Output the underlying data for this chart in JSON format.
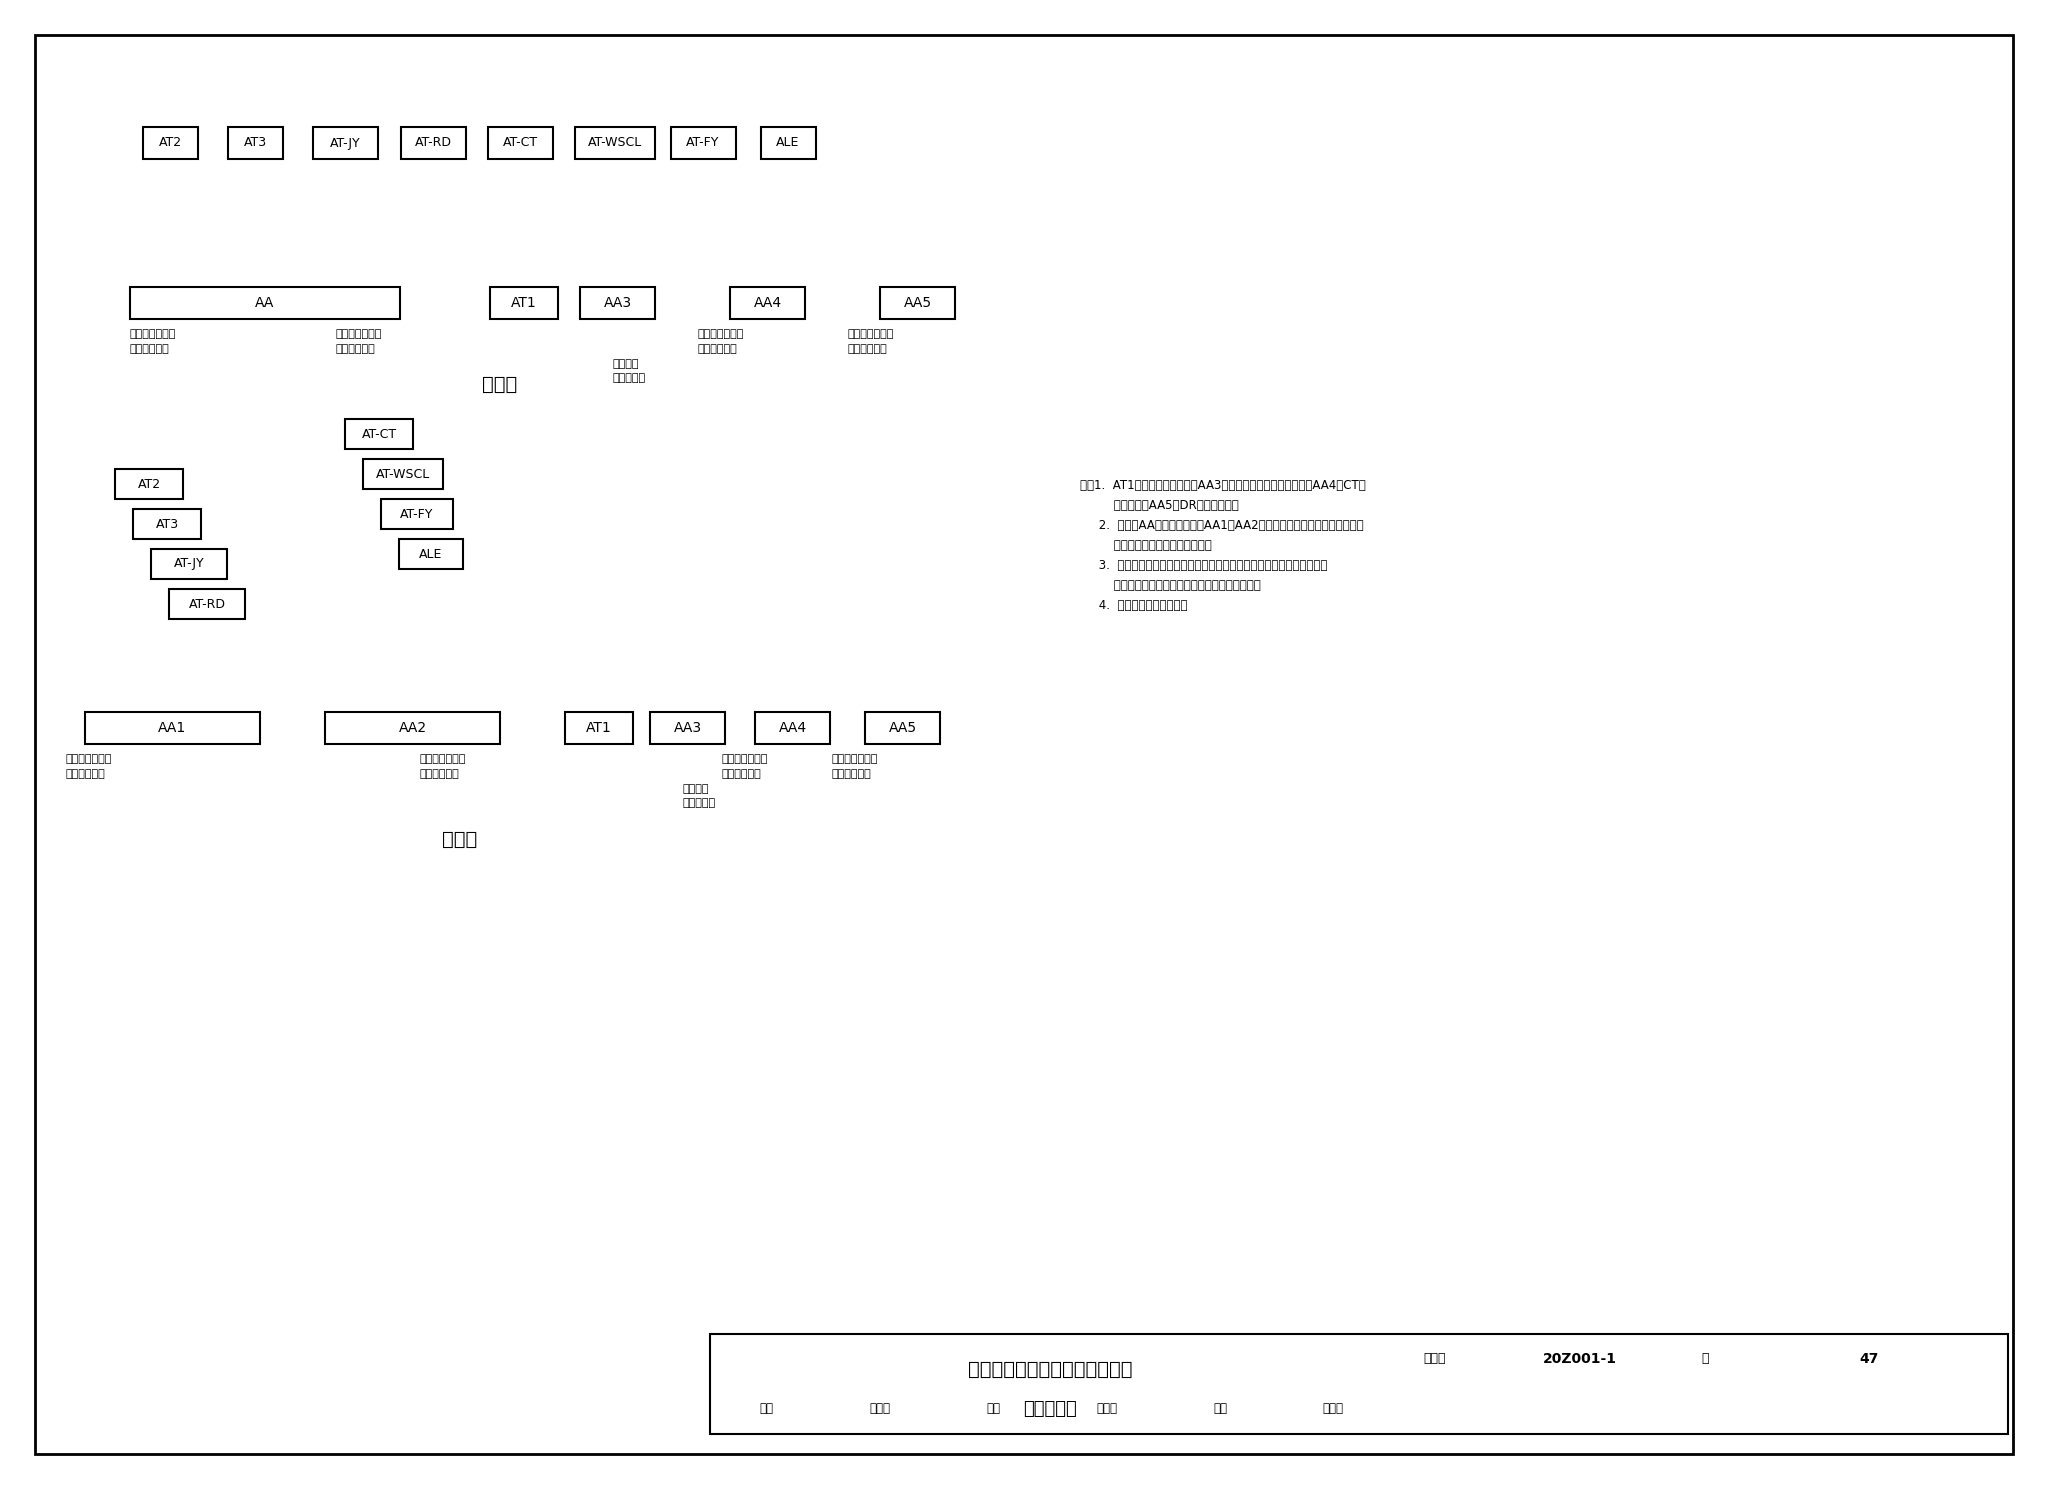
{
  "background_color": "#ffffff",
  "scheme1_label": "方案一",
  "scheme2_label": "方案二",
  "drawing_title_line1": "箱式留观病区医患走道合设示例",
  "drawing_title_line2": "干线系统图",
  "drawing_number": "20Z001-1",
  "page_number": "47",
  "note_lines": [
    "注：1.  AT1为空调系统配电柜；AA3为柴油发电机组进线配电柜；AA4为CT设",
    "         备配电柜；AA5为DR设备配电柜。",
    "     2.  方案一AA配电柜、方案二AA1及AA2配电柜为照明、污水处理、智能化",
    "         系统、应急照明等设备配电柜。",
    "     3.  方案一采用进线处做双路电源互投的供电方式；方案二采用双路电源",
    "         分别进线，各设备配电箱末端互投的供电方式。",
    "     4.  示例按照方案一绘制。"
  ],
  "footer_cells_top": [
    "图集号",
    "20Z001-1",
    "页",
    "47"
  ],
  "footer_cells_bottom": [
    "审核",
    "王东林",
    "校对",
    "贾　兰",
    "设计",
    "李明东"
  ]
}
